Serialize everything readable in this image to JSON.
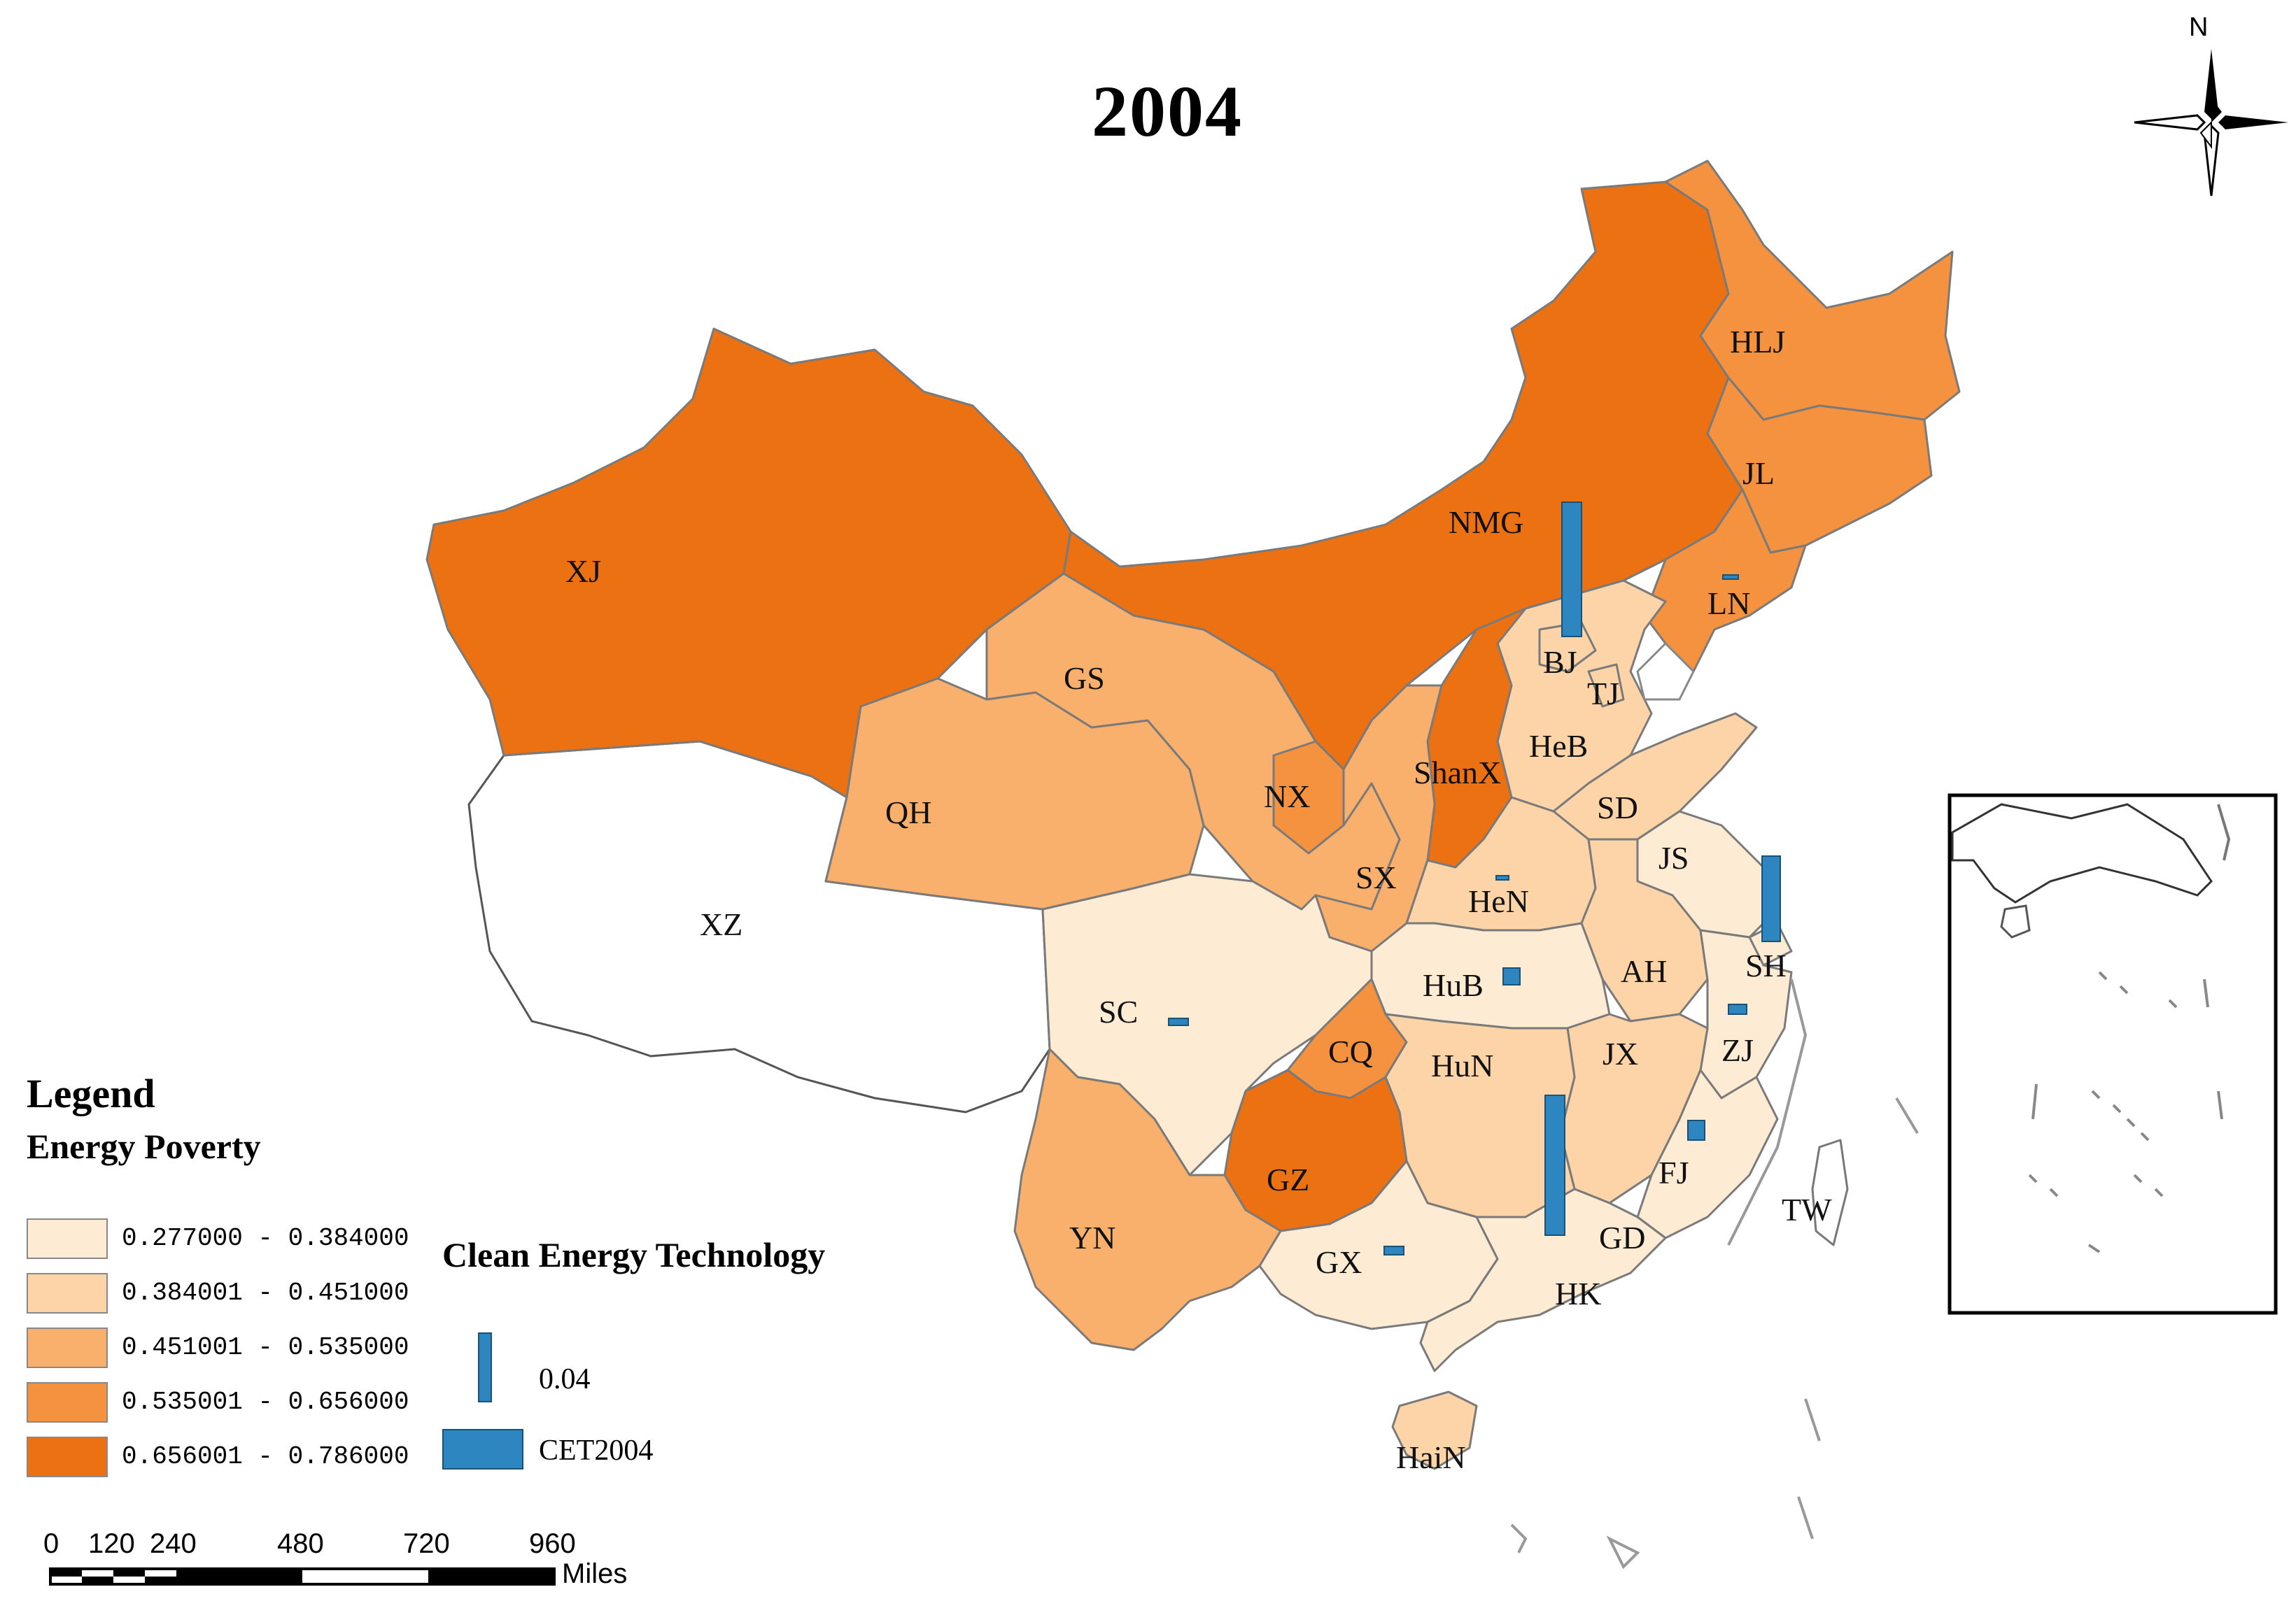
{
  "title": "2004",
  "north_label": "N",
  "legend": {
    "title": "Legend",
    "subtitle": "Energy Poverty",
    "classes": [
      {
        "label": "0.277000 - 0.384000",
        "color": "#fdebd3"
      },
      {
        "label": "0.384001 - 0.451000",
        "color": "#fcd4a8"
      },
      {
        "label": "0.451001 - 0.535000",
        "color": "#f9b06c"
      },
      {
        "label": "0.535001 - 0.656000",
        "color": "#f5923f"
      },
      {
        "label": "0.656001 - 0.786000",
        "color": "#ec7112"
      }
    ]
  },
  "cet_legend": {
    "title": "Clean Energy Technology",
    "bar_value": "0.04",
    "series_label": "CET2004",
    "color": "#2e86c1"
  },
  "scale_bar": {
    "ticks": [
      "0",
      "120",
      "240",
      "480",
      "720",
      "960"
    ],
    "unit": "Miles"
  },
  "provinces": {
    "XJ": {
      "label": "XJ",
      "class": 4
    },
    "XZ": {
      "label": "XZ",
      "class": null
    },
    "QH": {
      "label": "QH",
      "class": 2
    },
    "GS": {
      "label": "GS",
      "class": 2
    },
    "NMG": {
      "label": "NMG",
      "class": 4
    },
    "HLJ": {
      "label": "HLJ",
      "class": 3
    },
    "JL": {
      "label": "JL",
      "class": 3
    },
    "LN": {
      "label": "LN",
      "class": 3
    },
    "BJ": {
      "label": "BJ",
      "class": 1
    },
    "TJ": {
      "label": "TJ",
      "class": 1
    },
    "HeB": {
      "label": "HeB",
      "class": 1
    },
    "ShanX": {
      "label": "ShanX",
      "class": 4
    },
    "NX": {
      "label": "NX",
      "class": 3
    },
    "SX": {
      "label": "SX",
      "class": 2
    },
    "SD": {
      "label": "SD",
      "class": 1
    },
    "HeN": {
      "label": "HeN",
      "class": 1
    },
    "JS": {
      "label": "JS",
      "class": 0
    },
    "SH": {
      "label": "SH",
      "class": 0
    },
    "AH": {
      "label": "AH",
      "class": 1
    },
    "HuB": {
      "label": "HuB",
      "class": 0
    },
    "SC": {
      "label": "SC",
      "class": 0
    },
    "CQ": {
      "label": "CQ",
      "class": 3
    },
    "HuN": {
      "label": "HuN",
      "class": 1
    },
    "JX": {
      "label": "JX",
      "class": 1
    },
    "ZJ": {
      "label": "ZJ",
      "class": 0
    },
    "FJ": {
      "label": "FJ",
      "class": 0
    },
    "GZ": {
      "label": "GZ",
      "class": 4
    },
    "YN": {
      "label": "YN",
      "class": 2
    },
    "GX": {
      "label": "GX",
      "class": 0
    },
    "GD": {
      "label": "GD",
      "class": 0
    },
    "HK": {
      "label": "HK",
      "class": 0
    },
    "HaiN": {
      "label": "HaiN",
      "class": 1
    },
    "TW": {
      "label": "TW",
      "class": null
    }
  }
}
